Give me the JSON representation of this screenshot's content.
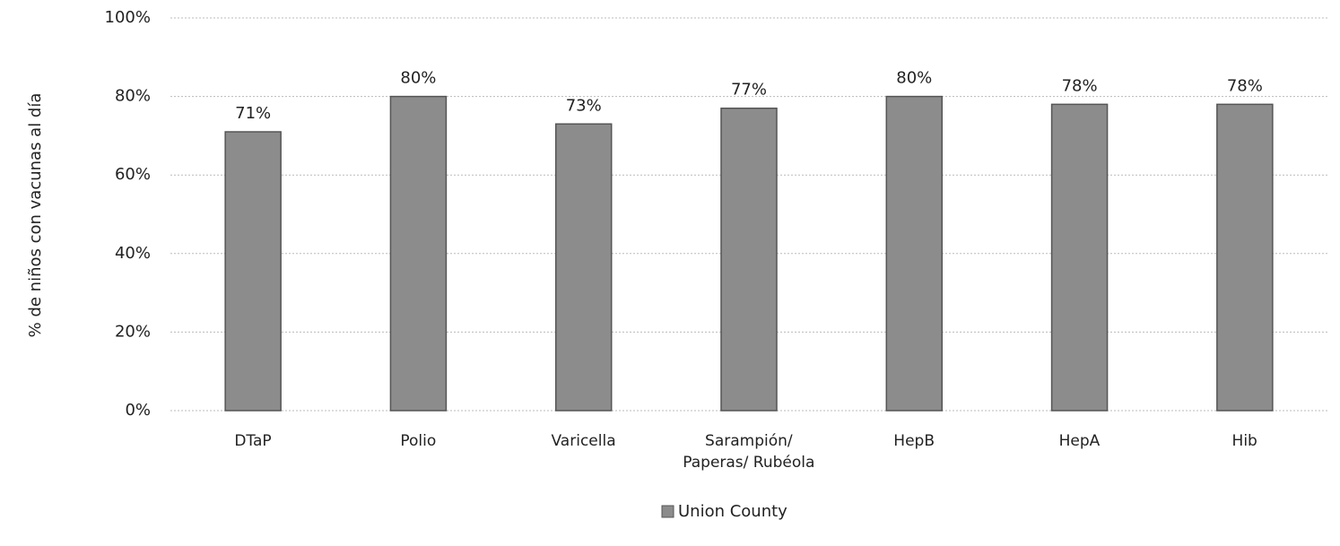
{
  "chart_data": {
    "type": "bar",
    "y_axis_label": "% de niños con vacunas al día",
    "categories": [
      "DTaP",
      "Polio",
      "Varicella",
      "Sarampión/\nPaperas/ Rubéola",
      "HepB",
      "HepA",
      "Hib"
    ],
    "series": [
      {
        "name": "Union County",
        "color": "#8c8c8c",
        "values": [
          71,
          80,
          73,
          77,
          80,
          78,
          78
        ],
        "value_labels": [
          "71%",
          "80%",
          "73%",
          "77%",
          "80%",
          "78%",
          "78%"
        ]
      }
    ],
    "ylim": [
      0,
      100
    ],
    "yticks": [
      {
        "value": 0,
        "label": "0%"
      },
      {
        "value": 20,
        "label": "20%"
      },
      {
        "value": 40,
        "label": "40%"
      },
      {
        "value": 60,
        "label": "60%"
      },
      {
        "value": 80,
        "label": "80%"
      },
      {
        "value": 100,
        "label": "100%"
      }
    ],
    "grid": true
  }
}
